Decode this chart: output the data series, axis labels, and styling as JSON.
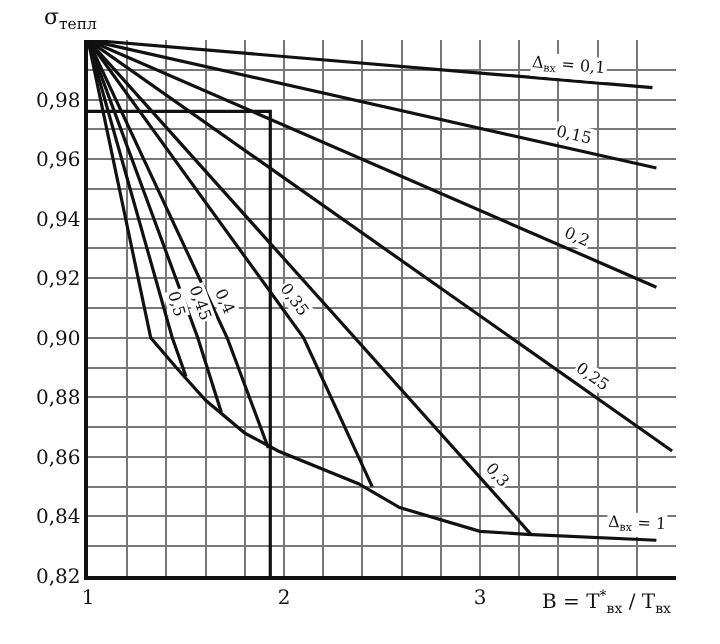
{
  "chart_data": {
    "type": "line",
    "ylabel": "σ$_{тепл}$",
    "xlabel": "B = T$^{*}$$_{вх}$ / T$_{вх}$",
    "xlim": [
      1,
      4
    ],
    "ylim": [
      0.82,
      1.0
    ],
    "xticks": [
      1,
      {
        "value": 1.2,
        "label": null
      },
      {
        "value": 1.4,
        "label": null
      },
      {
        "value": 1.6,
        "label": null
      },
      {
        "value": 1.8,
        "label": null
      },
      2,
      {
        "value": 2.2,
        "label": null
      },
      {
        "value": 2.4,
        "label": null
      },
      {
        "value": 2.6,
        "label": null
      },
      {
        "value": 2.8,
        "label": null
      },
      3,
      {
        "value": 3.2,
        "label": null
      },
      {
        "value": 3.4,
        "label": null
      },
      {
        "value": 3.6,
        "label": null
      },
      {
        "value": 3.8,
        "label": null
      }
    ],
    "yticks": [
      {
        "value": 0.82,
        "label": "0,82"
      },
      {
        "value": 0.83,
        "label": null
      },
      {
        "value": 0.84,
        "label": "0,84"
      },
      {
        "value": 0.85,
        "label": null
      },
      {
        "value": 0.86,
        "label": "0,86"
      },
      {
        "value": 0.87,
        "label": null
      },
      {
        "value": 0.88,
        "label": "0,88"
      },
      {
        "value": 0.89,
        "label": null
      },
      {
        "value": 0.9,
        "label": "0,90"
      },
      {
        "value": 0.91,
        "label": null
      },
      {
        "value": 0.92,
        "label": "0,92"
      },
      {
        "value": 0.93,
        "label": null
      },
      {
        "value": 0.94,
        "label": "0,94"
      },
      {
        "value": 0.95,
        "label": null
      },
      {
        "value": 0.96,
        "label": "0,96"
      },
      {
        "value": 0.97,
        "label": null
      },
      {
        "value": 0.98,
        "label": "0,98"
      },
      {
        "value": 0.99,
        "label": null
      }
    ],
    "grid": true,
    "legend": false,
    "marker": "none",
    "line_style": "solid",
    "series": [
      {
        "name": "Δ$_{вх}$ = 0,1",
        "color": "#111111",
        "x": [
          1,
          3.88
        ],
        "values": [
          1.0,
          0.984
        ]
      },
      {
        "name": "0,15",
        "color": "#111111",
        "x": [
          1,
          3.9
        ],
        "values": [
          1.0,
          0.957
        ]
      },
      {
        "name": "0,2",
        "color": "#111111",
        "x": [
          1,
          3.9
        ],
        "values": [
          1.0,
          0.917
        ]
      },
      {
        "name": "0,25",
        "color": "#111111",
        "x": [
          1,
          3.98
        ],
        "values": [
          1.0,
          0.862
        ]
      },
      {
        "name": "0,3",
        "color": "#111111",
        "x": [
          1,
          3.26
        ],
        "values": [
          1.0,
          0.834
        ]
      },
      {
        "name": "0,35",
        "color": "#111111",
        "x": [
          1,
          2.1,
          2.45
        ],
        "values": [
          1.0,
          0.9,
          0.85
        ]
      },
      {
        "name": "0,4",
        "color": "#111111",
        "x": [
          1,
          1.71,
          1.92
        ],
        "values": [
          1.0,
          0.9,
          0.863
        ]
      },
      {
        "name": "0,45",
        "color": "#111111",
        "x": [
          1,
          1.56,
          1.68
        ],
        "values": [
          1.0,
          0.9,
          0.875
        ]
      },
      {
        "name": "0,5",
        "color": "#111111",
        "x": [
          1,
          1.43,
          1.5
        ],
        "values": [
          1.0,
          0.9,
          0.887
        ]
      },
      {
        "name": "Δ$_{вх}$ = 1",
        "color": "#111111",
        "x": [
          1,
          1.32,
          1.45,
          1.6,
          1.8,
          1.97,
          2.38,
          2.59,
          3.0,
          3.24,
          3.9
        ],
        "values": [
          1.0,
          0.9,
          0.89,
          0.879,
          0.868,
          0.862,
          0.851,
          0.843,
          0.835,
          0.834,
          0.832
        ]
      },
      {
        "color": "#111111",
        "x": [
          1,
          1.93,
          1.93
        ],
        "values": [
          0.976,
          0.976,
          0.82
        ]
      }
    ]
  }
}
